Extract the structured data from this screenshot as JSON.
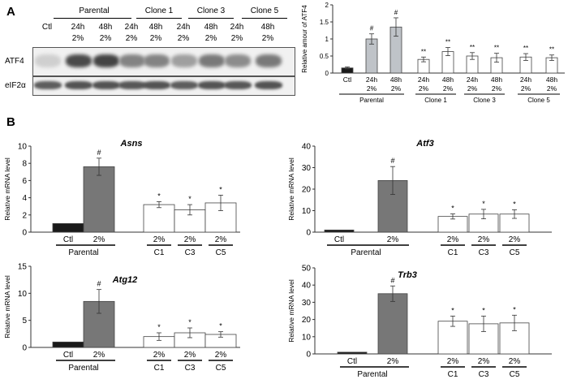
{
  "panel_a": {
    "letter": "A",
    "blot": {
      "group_labels": [
        "Parental",
        "Clone 1",
        "Clone 3",
        "Clone 5"
      ],
      "time_labels": [
        "Ctl",
        "24h",
        "48h",
        "24h",
        "48h",
        "24h",
        "48h",
        "24h",
        "48h"
      ],
      "oxygen_labels": [
        "",
        "2%",
        "2%",
        "2%",
        "2%",
        "2%",
        "2%",
        "2%",
        "2%"
      ],
      "row_labels": [
        "ATF4",
        "eIF2α"
      ],
      "atf4_intensity": [
        0.15,
        0.85,
        0.88,
        0.55,
        0.55,
        0.4,
        0.6,
        0.5,
        0.6
      ],
      "eif2a_intensity": [
        0.75,
        0.8,
        0.8,
        0.78,
        0.8,
        0.75,
        0.8,
        0.78,
        0.8
      ]
    }
  },
  "panel_b": {
    "letter": "B"
  },
  "colors": {
    "ctl": "#1a1a1a",
    "hypoxia": "#777777",
    "parental_24": "#bfc3c8",
    "clone": "#ffffff"
  },
  "chart_data": [
    {
      "id": "atf4-quant",
      "type": "bar",
      "title": "",
      "ylabel": "Relative amour of ATF4",
      "ylim": [
        0,
        2
      ],
      "yticks": [
        0,
        0.5,
        1,
        1.5,
        2
      ],
      "ytick_labels": [
        "0",
        "0.5",
        "1",
        "1.5",
        "2"
      ],
      "categories": [
        "Ctl",
        "24h 2%",
        "48h 2%",
        "24h 2%",
        "48h 2%",
        "24h 2%",
        "48h 2%",
        "24h 2%",
        "48h 2%"
      ],
      "cat_line1": [
        "Ctl",
        "24h",
        "48h",
        "24h",
        "48h",
        "24h",
        "48h",
        "24h",
        "48h"
      ],
      "cat_line2": [
        "",
        "2%",
        "2%",
        "2%",
        "2%",
        "2%",
        "2%",
        "2%",
        "2%"
      ],
      "values": [
        0.15,
        1.0,
        1.35,
        0.4,
        0.63,
        0.5,
        0.45,
        0.47,
        0.45
      ],
      "errors": [
        0.03,
        0.15,
        0.27,
        0.07,
        0.12,
        0.1,
        0.13,
        0.1,
        0.08
      ],
      "markers": [
        "",
        "#",
        "#",
        "**",
        "**",
        "**",
        "**",
        "**",
        "**"
      ],
      "bar_colors": [
        "#1a1a1a",
        "#bfc3c8",
        "#bfc3c8",
        "#ffffff",
        "#ffffff",
        "#ffffff",
        "#ffffff",
        "#ffffff",
        "#ffffff"
      ],
      "groups": [
        {
          "label": "Parental",
          "from": 0,
          "to": 2
        },
        {
          "label": "Clone 1",
          "from": 3,
          "to": 4
        },
        {
          "label": "Clone 3",
          "from": 5,
          "to": 6
        },
        {
          "label": "Clone 5",
          "from": 7,
          "to": 8
        }
      ]
    },
    {
      "id": "asns",
      "type": "bar",
      "title": "Asns",
      "ylabel": "Relative mRNA level",
      "ylim": [
        0,
        10
      ],
      "yticks": [
        0,
        2,
        4,
        6,
        8,
        10
      ],
      "ytick_labels": [
        "0",
        "2",
        "4",
        "6",
        "8",
        "10"
      ],
      "categories": [
        "Ctl",
        "2%",
        "2%",
        "2%",
        "2%"
      ],
      "values": [
        1.0,
        7.6,
        3.2,
        2.6,
        3.4
      ],
      "errors": [
        0,
        1.0,
        0.35,
        0.6,
        0.9
      ],
      "markers": [
        "",
        "#",
        "*",
        "*",
        "*"
      ],
      "bar_colors": [
        "#1a1a1a",
        "#777777",
        "#ffffff",
        "#ffffff",
        "#ffffff"
      ],
      "clone_labels": [
        "C1",
        "C3",
        "C5"
      ],
      "group_label": "Parental"
    },
    {
      "id": "atf3",
      "type": "bar",
      "title": "Atf3",
      "ylabel": "Relative mRNA level",
      "ylim": [
        0,
        40
      ],
      "yticks": [
        0,
        10,
        20,
        30,
        40
      ],
      "ytick_labels": [
        "0",
        "10",
        "20",
        "30",
        "40"
      ],
      "categories": [
        "Ctl",
        "2%",
        "2%",
        "2%",
        "2%"
      ],
      "values": [
        1.0,
        24.0,
        7.3,
        8.4,
        8.4
      ],
      "errors": [
        0,
        6.5,
        1.2,
        2.2,
        2.0
      ],
      "markers": [
        "",
        "#",
        "*",
        "*",
        "*"
      ],
      "bar_colors": [
        "#1a1a1a",
        "#777777",
        "#ffffff",
        "#ffffff",
        "#ffffff"
      ],
      "clone_labels": [
        "C1",
        "C3",
        "C5"
      ],
      "group_label": "Parental"
    },
    {
      "id": "atg12",
      "type": "bar",
      "title": "Atg12",
      "ylabel": "Relative mRNA level",
      "ylim": [
        0,
        15
      ],
      "yticks": [
        0,
        5,
        10,
        15
      ],
      "ytick_labels": [
        "0",
        "5",
        "10",
        "15"
      ],
      "categories": [
        "Ctl",
        "2%",
        "2%",
        "2%",
        "2%"
      ],
      "values": [
        1.0,
        8.5,
        2.0,
        2.7,
        2.4
      ],
      "errors": [
        0,
        2.2,
        0.7,
        0.9,
        0.5
      ],
      "markers": [
        "",
        "#",
        "*",
        "*",
        "*"
      ],
      "bar_colors": [
        "#1a1a1a",
        "#777777",
        "#ffffff",
        "#ffffff",
        "#ffffff"
      ],
      "clone_labels": [
        "C1",
        "C3",
        "C5"
      ],
      "group_label": "Parental"
    },
    {
      "id": "trb3",
      "type": "bar",
      "title": "Trb3",
      "ylabel": "Relative mRNA level",
      "ylim": [
        0,
        50
      ],
      "yticks": [
        0,
        10,
        20,
        30,
        40,
        50
      ],
      "ytick_labels": [
        "0",
        "10",
        "20",
        "30",
        "40",
        "50"
      ],
      "categories": [
        "Ctl",
        "2%",
        "2%",
        "2%",
        "2%"
      ],
      "values": [
        1.0,
        35.0,
        19.0,
        17.5,
        18.0
      ],
      "errors": [
        0,
        4.5,
        3.0,
        4.5,
        4.5
      ],
      "markers": [
        "",
        "#",
        "*",
        "*",
        "*"
      ],
      "bar_colors": [
        "#1a1a1a",
        "#777777",
        "#ffffff",
        "#ffffff",
        "#ffffff"
      ],
      "clone_labels": [
        "C1",
        "C3",
        "C5"
      ],
      "group_label": "Parental"
    }
  ]
}
